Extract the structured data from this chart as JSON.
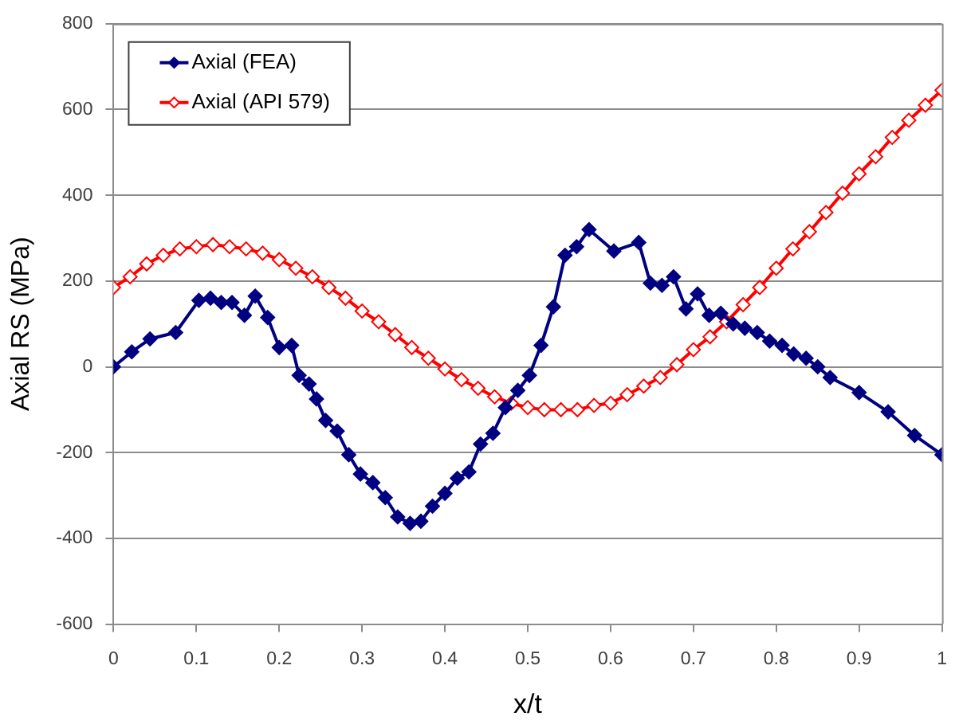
{
  "chart_data": {
    "type": "line",
    "xlabel": "x/t",
    "ylabel": "Axial RS (MPa)",
    "xlim": [
      0,
      1
    ],
    "xticks": [
      0,
      0.1,
      0.2,
      0.3,
      0.4,
      0.5,
      0.6,
      0.7,
      0.8,
      0.9,
      1
    ],
    "ylim": [
      -600,
      800
    ],
    "yticks": [
      -600,
      -400,
      -200,
      0,
      200,
      400,
      600,
      800
    ],
    "grid": "y",
    "legend": "top left",
    "marker": "diamond",
    "line_style": "solid",
    "series": [
      {
        "name": "Axial (FEA)",
        "color": "#000080",
        "x": [
          0,
          0.022,
          0.044,
          0.075,
          0.103,
          0.117,
          0.13,
          0.143,
          0.158,
          0.171,
          0.186,
          0.2,
          0.215,
          0.224,
          0.236,
          0.245,
          0.256,
          0.27,
          0.284,
          0.298,
          0.313,
          0.328,
          0.343,
          0.358,
          0.371,
          0.385,
          0.4,
          0.415,
          0.429,
          0.443,
          0.458,
          0.473,
          0.488,
          0.502,
          0.516,
          0.531,
          0.545,
          0.559,
          0.574,
          0.604,
          0.634,
          0.648,
          0.662,
          0.676,
          0.691,
          0.705,
          0.719,
          0.733,
          0.748,
          0.762,
          0.777,
          0.792,
          0.807,
          0.821,
          0.836,
          0.85,
          0.865,
          0.9,
          0.935,
          0.967,
          1
        ],
        "values": [
          0,
          35,
          65,
          80,
          155,
          160,
          150,
          150,
          120,
          165,
          115,
          45,
          50,
          -20,
          -40,
          -75,
          -125,
          -150,
          -205,
          -250,
          -270,
          -305,
          -350,
          -365,
          -360,
          -325,
          -295,
          -260,
          -245,
          -180,
          -155,
          -95,
          -55,
          -20,
          50,
          140,
          260,
          280,
          320,
          270,
          290,
          195,
          190,
          210,
          135,
          170,
          120,
          125,
          100,
          90,
          80,
          60,
          50,
          30,
          20,
          0,
          -25,
          -60,
          -105,
          -160,
          -205
        ]
      },
      {
        "name": "Axial (API 579)",
        "color": "#ff0000",
        "x": [
          0,
          0.02,
          0.04,
          0.06,
          0.08,
          0.1,
          0.12,
          0.14,
          0.16,
          0.18,
          0.2,
          0.22,
          0.24,
          0.26,
          0.28,
          0.3,
          0.32,
          0.34,
          0.36,
          0.38,
          0.4,
          0.42,
          0.44,
          0.46,
          0.48,
          0.5,
          0.52,
          0.54,
          0.56,
          0.58,
          0.6,
          0.62,
          0.64,
          0.66,
          0.68,
          0.7,
          0.72,
          0.74,
          0.76,
          0.78,
          0.8,
          0.82,
          0.84,
          0.86,
          0.88,
          0.9,
          0.92,
          0.94,
          0.96,
          0.98,
          1
        ],
        "values": [
          185,
          210,
          240,
          260,
          275,
          280,
          285,
          280,
          275,
          265,
          250,
          230,
          210,
          185,
          160,
          130,
          105,
          75,
          45,
          20,
          -5,
          -30,
          -50,
          -70,
          -85,
          -95,
          -100,
          -100,
          -100,
          -90,
          -85,
          -65,
          -45,
          -25,
          5,
          40,
          70,
          105,
          145,
          185,
          230,
          275,
          315,
          360,
          405,
          450,
          490,
          535,
          575,
          610,
          645
        ]
      }
    ]
  }
}
